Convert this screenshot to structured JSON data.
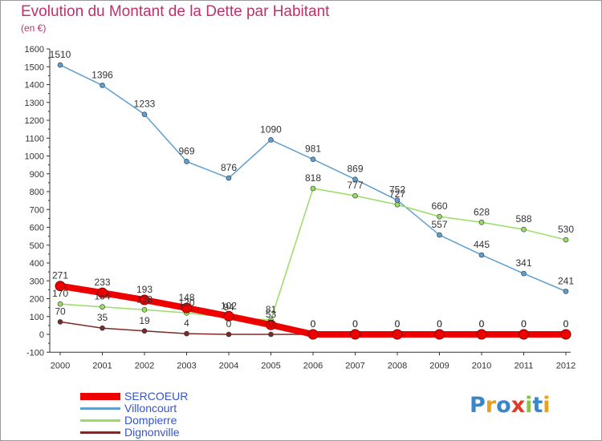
{
  "chart_data": {
    "type": "line",
    "title": "Evolution du Montant de la Dette par Habitant",
    "subtitle": "(en €)",
    "x": [
      "2000",
      "2001",
      "2002",
      "2003",
      "2004",
      "2005",
      "2006",
      "2007",
      "2008",
      "2009",
      "2010",
      "2011",
      "2012"
    ],
    "ylim": [
      -100,
      1600
    ],
    "yticks": [
      -100,
      0,
      100,
      200,
      300,
      400,
      500,
      600,
      700,
      800,
      900,
      1000,
      1100,
      1200,
      1300,
      1400,
      1500,
      1600
    ],
    "grid": false,
    "legend": "bottom-left",
    "series": [
      {
        "name": "SERCOEUR",
        "color": "#ee0000",
        "values": [
          271,
          233,
          193,
          148,
          102,
          53,
          0,
          0,
          0,
          0,
          0,
          0,
          0
        ]
      },
      {
        "name": "Villoncourt",
        "color": "#5e9fcf",
        "values": [
          1510,
          1396,
          1233,
          969,
          876,
          1090,
          981,
          869,
          752,
          557,
          445,
          341,
          241
        ]
      },
      {
        "name": "Dompierre",
        "color": "#99dd66",
        "values": [
          170,
          154,
          138,
          120,
          94,
          81,
          818,
          777,
          727,
          660,
          628,
          588,
          530
        ]
      },
      {
        "name": "Dignonville",
        "color": "#7a2a2a",
        "values": [
          70,
          35,
          19,
          4,
          0,
          0,
          0,
          0,
          0,
          0,
          0,
          0,
          0
        ]
      }
    ]
  },
  "logo": {
    "text": "Proxiti"
  }
}
